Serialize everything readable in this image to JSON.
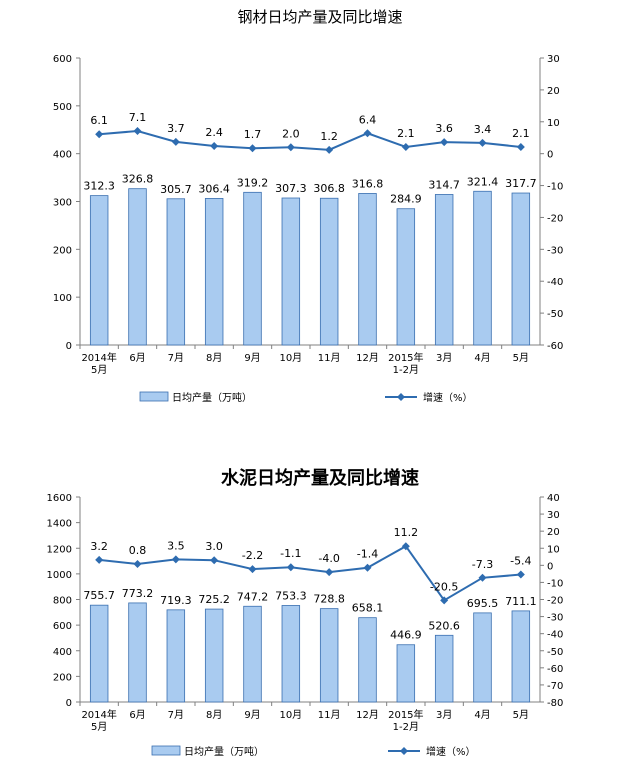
{
  "chart_data": [
    {
      "type": "bar+line",
      "title": "钢材日均产量及同比增速",
      "categories": [
        "2014年\n5月",
        "6月",
        "7月",
        "8月",
        "9月",
        "10月",
        "11月",
        "12月",
        "2015年\n1-2月",
        "3月",
        "4月",
        "5月"
      ],
      "series": [
        {
          "name": "日均产量（万吨）",
          "type": "bar",
          "axis": "left",
          "values": [
            312.3,
            326.8,
            305.7,
            306.4,
            319.2,
            307.3,
            306.8,
            316.8,
            284.9,
            314.7,
            321.4,
            317.7
          ],
          "labels": [
            "312.3",
            "326.8",
            "305.7",
            "306.4",
            "319.2",
            "307.3",
            "306.8",
            "316.8",
            "284.9",
            "314.7",
            "321.4",
            "317.7"
          ]
        },
        {
          "name": "增速（%）",
          "type": "line",
          "axis": "right",
          "values": [
            6.1,
            7.1,
            3.7,
            2.4,
            1.7,
            2.0,
            1.2,
            6.4,
            2.1,
            3.6,
            3.4,
            2.1
          ],
          "labels": [
            "6.1",
            "7.1",
            "3.7",
            "2.4",
            "1.7",
            "2.0",
            "1.2",
            "6.4",
            "2.1",
            "3.6",
            "3.4",
            "2.1"
          ]
        }
      ],
      "y_left": {
        "min": 0,
        "max": 600,
        "ticks": [
          "0",
          "100",
          "200",
          "300",
          "400",
          "500",
          "600"
        ]
      },
      "y_right": {
        "min": -60,
        "max": 30,
        "ticks": [
          "-60",
          "-50",
          "-40",
          "-30",
          "-20",
          "-10",
          "0",
          "10",
          "20",
          "30"
        ]
      },
      "grid": false,
      "legend": "bottom",
      "colors": {
        "bar_fill": "#a9cbf0",
        "bar_stroke": "#3a6fb0",
        "line": "#2e6cb0"
      }
    },
    {
      "type": "bar+line",
      "title": "水泥日均产量及同比增速",
      "categories": [
        "2014年\n5月",
        "6月",
        "7月",
        "8月",
        "9月",
        "10月",
        "11月",
        "12月",
        "2015年\n1-2月",
        "3月",
        "4月",
        "5月"
      ],
      "series": [
        {
          "name": "日均产量（万吨）",
          "type": "bar",
          "axis": "left",
          "values": [
            755.7,
            773.2,
            719.3,
            725.2,
            747.2,
            753.3,
            728.8,
            658.1,
            446.9,
            520.6,
            695.5,
            711.1
          ],
          "labels": [
            "755.7",
            "773.2",
            "719.3",
            "725.2",
            "747.2",
            "753.3",
            "728.8",
            "658.1",
            "446.9",
            "520.6",
            "695.5",
            "711.1"
          ]
        },
        {
          "name": "增速（%）",
          "type": "line",
          "axis": "right",
          "values": [
            3.2,
            0.8,
            3.5,
            3.0,
            -2.2,
            -1.1,
            -4.0,
            -1.4,
            11.2,
            -20.5,
            -7.3,
            -5.4
          ],
          "labels": [
            "3.2",
            "0.8",
            "3.5",
            "3.0",
            "-2.2",
            "-1.1",
            "-4.0",
            "-1.4",
            "11.2",
            "-20.5",
            "-7.3",
            "-5.4"
          ]
        }
      ],
      "y_left": {
        "min": 0,
        "max": 1600,
        "ticks": [
          "0",
          "200",
          "400",
          "600",
          "800",
          "1000",
          "1200",
          "1400",
          "1600"
        ]
      },
      "y_right": {
        "min": -80,
        "max": 40,
        "ticks": [
          "-80",
          "-70",
          "-60",
          "-50",
          "-40",
          "-30",
          "-20",
          "-10",
          "0",
          "10",
          "20",
          "30",
          "40"
        ]
      },
      "grid": false,
      "legend": "bottom",
      "colors": {
        "bar_fill": "#a9cbf0",
        "bar_stroke": "#3a6fb0",
        "line": "#2e6cb0"
      }
    }
  ]
}
